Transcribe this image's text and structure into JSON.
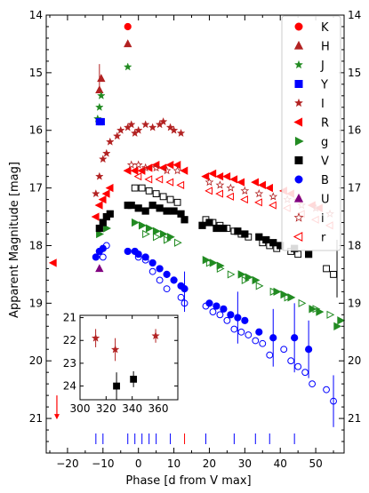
{
  "chart_data": [
    {
      "type": "scatter",
      "xlabel": "Phase [d from V max]",
      "ylabel": "Apparent Magnitude [mag]",
      "xlim": [
        -26,
        58
      ],
      "ylim": [
        21.6,
        14.0
      ],
      "y_inverted": true,
      "xticks": [
        -20,
        -10,
        0,
        10,
        20,
        30,
        40,
        50
      ],
      "xtick_labels": [
        "−20",
        "−10",
        "0",
        "10",
        "20",
        "30",
        "40",
        "50"
      ],
      "yticks": [
        14,
        15,
        16,
        17,
        18,
        19,
        20,
        21
      ],
      "ytick_labels": [
        "14",
        "15",
        "16",
        "17",
        "18",
        "19",
        "20",
        "21"
      ],
      "legend_position": "top-right",
      "series": [
        {
          "name": "K",
          "color": "#ff0000",
          "marker": "circle",
          "filled": true,
          "x": [
            -3
          ],
          "y": [
            14.2
          ]
        },
        {
          "name": "H",
          "color": "#b22222",
          "marker": "triangle",
          "filled": true,
          "x": [
            -11,
            -10.5,
            -3
          ],
          "y": [
            15.3,
            15.1,
            14.5
          ]
        },
        {
          "name": "J",
          "color": "#228b22",
          "marker": "star",
          "filled": true,
          "x": [
            -11.5,
            -11,
            -10.5,
            -3
          ],
          "y": [
            15.8,
            15.6,
            15.4,
            14.9
          ]
        },
        {
          "name": "Y",
          "color": "#0000ff",
          "marker": "square",
          "filled": true,
          "x": [
            -11,
            -10.5
          ],
          "y": [
            15.85,
            15.85
          ]
        },
        {
          "name": "I",
          "color": "#b22222",
          "marker": "star",
          "filled": true,
          "x": [
            -12,
            -11,
            -10,
            -9,
            -8,
            -6,
            -5,
            -3,
            -2,
            -1,
            0,
            2,
            4,
            6,
            7,
            9,
            10,
            12
          ],
          "y": [
            17.1,
            16.8,
            16.5,
            16.4,
            16.2,
            16.1,
            16.0,
            15.95,
            15.9,
            16.05,
            16.0,
            15.9,
            15.95,
            15.9,
            15.85,
            15.95,
            16.0,
            16.05
          ]
        },
        {
          "name": "R",
          "color": "#ff0000",
          "marker": "triangle-left",
          "filled": true,
          "x": [
            -24,
            -12,
            -11,
            -10,
            -9,
            -8,
            -3,
            -1,
            1,
            3,
            5,
            7,
            9,
            11,
            13,
            19,
            21,
            23,
            25,
            27,
            29,
            33,
            35,
            37,
            41,
            43,
            45,
            49,
            51
          ],
          "y": [
            18.3,
            17.5,
            17.3,
            17.2,
            17.1,
            17.0,
            16.7,
            16.7,
            16.7,
            16.65,
            16.6,
            16.65,
            16.6,
            16.6,
            16.7,
            16.8,
            16.75,
            16.8,
            16.8,
            16.85,
            16.9,
            16.9,
            16.95,
            17.0,
            17.05,
            17.1,
            17.2,
            17.3,
            17.35
          ]
        },
        {
          "name": "g",
          "color": "#228b22",
          "marker": "triangle-right",
          "filled": true,
          "x": [
            -11,
            -9,
            -1,
            1,
            3,
            5,
            7,
            9,
            19,
            21,
            23,
            29,
            31,
            33,
            39,
            41,
            43,
            49,
            51,
            56,
            57
          ],
          "y": [
            17.8,
            17.7,
            17.6,
            17.65,
            17.7,
            17.75,
            17.8,
            17.85,
            18.25,
            18.3,
            18.35,
            18.5,
            18.55,
            18.6,
            18.8,
            18.85,
            18.9,
            19.1,
            19.15,
            19.4,
            19.3
          ]
        },
        {
          "name": "V",
          "color": "#000000",
          "marker": "square",
          "filled": true,
          "x": [
            -11,
            -10,
            -9,
            -8,
            -3,
            -2,
            0,
            2,
            4,
            6,
            8,
            10,
            12,
            13,
            18,
            20,
            22,
            24,
            28,
            30,
            34,
            36,
            38,
            40,
            44,
            48
          ],
          "y": [
            17.7,
            17.6,
            17.5,
            17.45,
            17.3,
            17.3,
            17.35,
            17.4,
            17.3,
            17.35,
            17.4,
            17.4,
            17.45,
            17.55,
            17.65,
            17.6,
            17.7,
            17.7,
            17.75,
            17.8,
            17.85,
            17.9,
            17.95,
            18.0,
            18.05,
            18.15
          ]
        },
        {
          "name": "B",
          "color": "#0000ff",
          "marker": "circle",
          "filled": true,
          "x": [
            -12,
            -11,
            -10,
            -3,
            -1,
            0,
            2,
            4,
            6,
            8,
            10,
            12,
            13,
            20,
            22,
            24,
            26,
            28,
            30,
            34,
            38,
            44,
            48
          ],
          "y": [
            18.2,
            18.1,
            18.05,
            18.1,
            18.1,
            18.15,
            18.2,
            18.3,
            18.4,
            18.5,
            18.6,
            18.7,
            18.75,
            19.0,
            19.05,
            19.1,
            19.2,
            19.25,
            19.3,
            19.5,
            19.6,
            19.6,
            19.8
          ]
        },
        {
          "name": "U",
          "color": "#800080",
          "marker": "triangle",
          "filled": true,
          "x": [
            -11
          ],
          "y": [
            18.4
          ]
        },
        {
          "name": "i",
          "color": "#b22222",
          "marker": "star",
          "filled": false,
          "x": [
            -2,
            0,
            2,
            5,
            8,
            11,
            20,
            23,
            26,
            30,
            34,
            38,
            42,
            46,
            50,
            54
          ],
          "y": [
            16.6,
            16.6,
            16.65,
            16.65,
            16.7,
            16.7,
            16.9,
            16.95,
            17.0,
            17.05,
            17.1,
            17.15,
            17.2,
            17.3,
            17.35,
            17.45
          ]
        },
        {
          "name": "r",
          "color": "#ff0000",
          "marker": "triangle-left",
          "filled": false,
          "x": [
            0,
            3,
            6,
            9,
            12,
            20,
            23,
            26,
            30,
            34,
            38,
            42,
            46,
            50,
            54
          ],
          "y": [
            16.8,
            16.85,
            16.85,
            16.9,
            16.95,
            17.05,
            17.1,
            17.15,
            17.2,
            17.25,
            17.3,
            17.35,
            17.45,
            17.55,
            17.65
          ]
        },
        {
          "name": "V (open)",
          "color": "#000000",
          "marker": "square",
          "filled": false,
          "x": [
            -1,
            1,
            3,
            5,
            7,
            9,
            11,
            19,
            21,
            23,
            25,
            27,
            29,
            31,
            35,
            37,
            39,
            43,
            45,
            53,
            55
          ],
          "y": [
            17.0,
            17.0,
            17.05,
            17.1,
            17.15,
            17.2,
            17.25,
            17.55,
            17.6,
            17.65,
            17.7,
            17.75,
            17.8,
            17.85,
            17.95,
            18.0,
            18.05,
            18.1,
            18.15,
            18.4,
            18.5
          ]
        },
        {
          "name": "g (open)",
          "color": "#228b22",
          "marker": "triangle-right",
          "filled": false,
          "x": [
            2,
            5,
            8,
            11,
            20,
            23,
            26,
            30,
            34,
            38,
            42,
            46,
            50,
            54
          ],
          "y": [
            17.8,
            17.85,
            17.9,
            17.95,
            18.3,
            18.4,
            18.5,
            18.6,
            18.7,
            18.8,
            18.9,
            19.0,
            19.1,
            19.2
          ]
        },
        {
          "name": "B (open)",
          "color": "#0000ff",
          "marker": "circle",
          "filled": false,
          "x": [
            -10,
            -9,
            0,
            2,
            4,
            6,
            8,
            12,
            13,
            19,
            21,
            23,
            25,
            27,
            29,
            31,
            33,
            35,
            37,
            41,
            43,
            45,
            47,
            49,
            53,
            55
          ],
          "y": [
            18.2,
            18.0,
            18.2,
            18.25,
            18.45,
            18.6,
            18.75,
            18.9,
            19.0,
            19.05,
            19.15,
            19.2,
            19.3,
            19.45,
            19.5,
            19.55,
            19.65,
            19.7,
            19.9,
            19.8,
            20.0,
            20.1,
            20.2,
            20.4,
            20.5,
            20.7
          ]
        }
      ],
      "errorbars": [
        {
          "x": -11,
          "y": 15.1,
          "err": 0.25,
          "color": "#b22222"
        },
        {
          "x": 13,
          "y": 18.8,
          "err": 0.35,
          "color": "#0000ff"
        },
        {
          "x": 28,
          "y": 19.25,
          "err": 0.45,
          "color": "#0000ff"
        },
        {
          "x": 38,
          "y": 19.6,
          "err": 0.5,
          "color": "#0000ff"
        },
        {
          "x": 44,
          "y": 19.6,
          "err": 0.6,
          "color": "#0000ff"
        },
        {
          "x": 48,
          "y": 19.8,
          "err": 0.5,
          "color": "#0000ff"
        },
        {
          "x": 55,
          "y": 20.7,
          "err": 0.45,
          "color": "#0000ff"
        },
        {
          "x": 56,
          "y": 18.4,
          "err": 0.5,
          "color": "#000000"
        }
      ],
      "upper_limits": [
        {
          "x": -23,
          "y": 20.6,
          "color": "#ff0000"
        }
      ],
      "epoch_ticks": [
        {
          "x": -12,
          "color": "#0000ff"
        },
        {
          "x": -10,
          "color": "#0000ff"
        },
        {
          "x": -3,
          "color": "#0000ff"
        },
        {
          "x": -1,
          "color": "#0000ff"
        },
        {
          "x": 1,
          "color": "#0000ff"
        },
        {
          "x": 3,
          "color": "#0000ff"
        },
        {
          "x": 5,
          "color": "#0000ff"
        },
        {
          "x": 9,
          "color": "#0000ff"
        },
        {
          "x": 13,
          "color": "#ff0000"
        },
        {
          "x": 19,
          "color": "#0000ff"
        },
        {
          "x": 27,
          "color": "#0000ff"
        },
        {
          "x": 33,
          "color": "#0000ff"
        },
        {
          "x": 37,
          "color": "#0000ff"
        },
        {
          "x": 44,
          "color": "#0000ff"
        }
      ]
    },
    {
      "type": "scatter",
      "inset": true,
      "xlim": [
        300,
        375
      ],
      "ylim": [
        24.6,
        20.9
      ],
      "y_inverted": true,
      "xticks": [
        300,
        320,
        340,
        360
      ],
      "xtick_labels": [
        "300",
        "320",
        "340",
        "360"
      ],
      "yticks": [
        21,
        22,
        23,
        24
      ],
      "ytick_labels": [
        "21",
        "22",
        "23",
        "24"
      ],
      "series": [
        {
          "name": "I",
          "color": "#b22222",
          "marker": "star",
          "x": [
            312,
            327,
            358
          ],
          "y": [
            21.9,
            22.4,
            21.8
          ],
          "err": [
            0.4,
            0.5,
            0.3
          ]
        },
        {
          "name": "V",
          "color": "#000000",
          "marker": "square",
          "x": [
            328,
            341
          ],
          "y": [
            24.0,
            23.7
          ],
          "err": [
            0.6,
            0.35
          ]
        }
      ]
    }
  ]
}
